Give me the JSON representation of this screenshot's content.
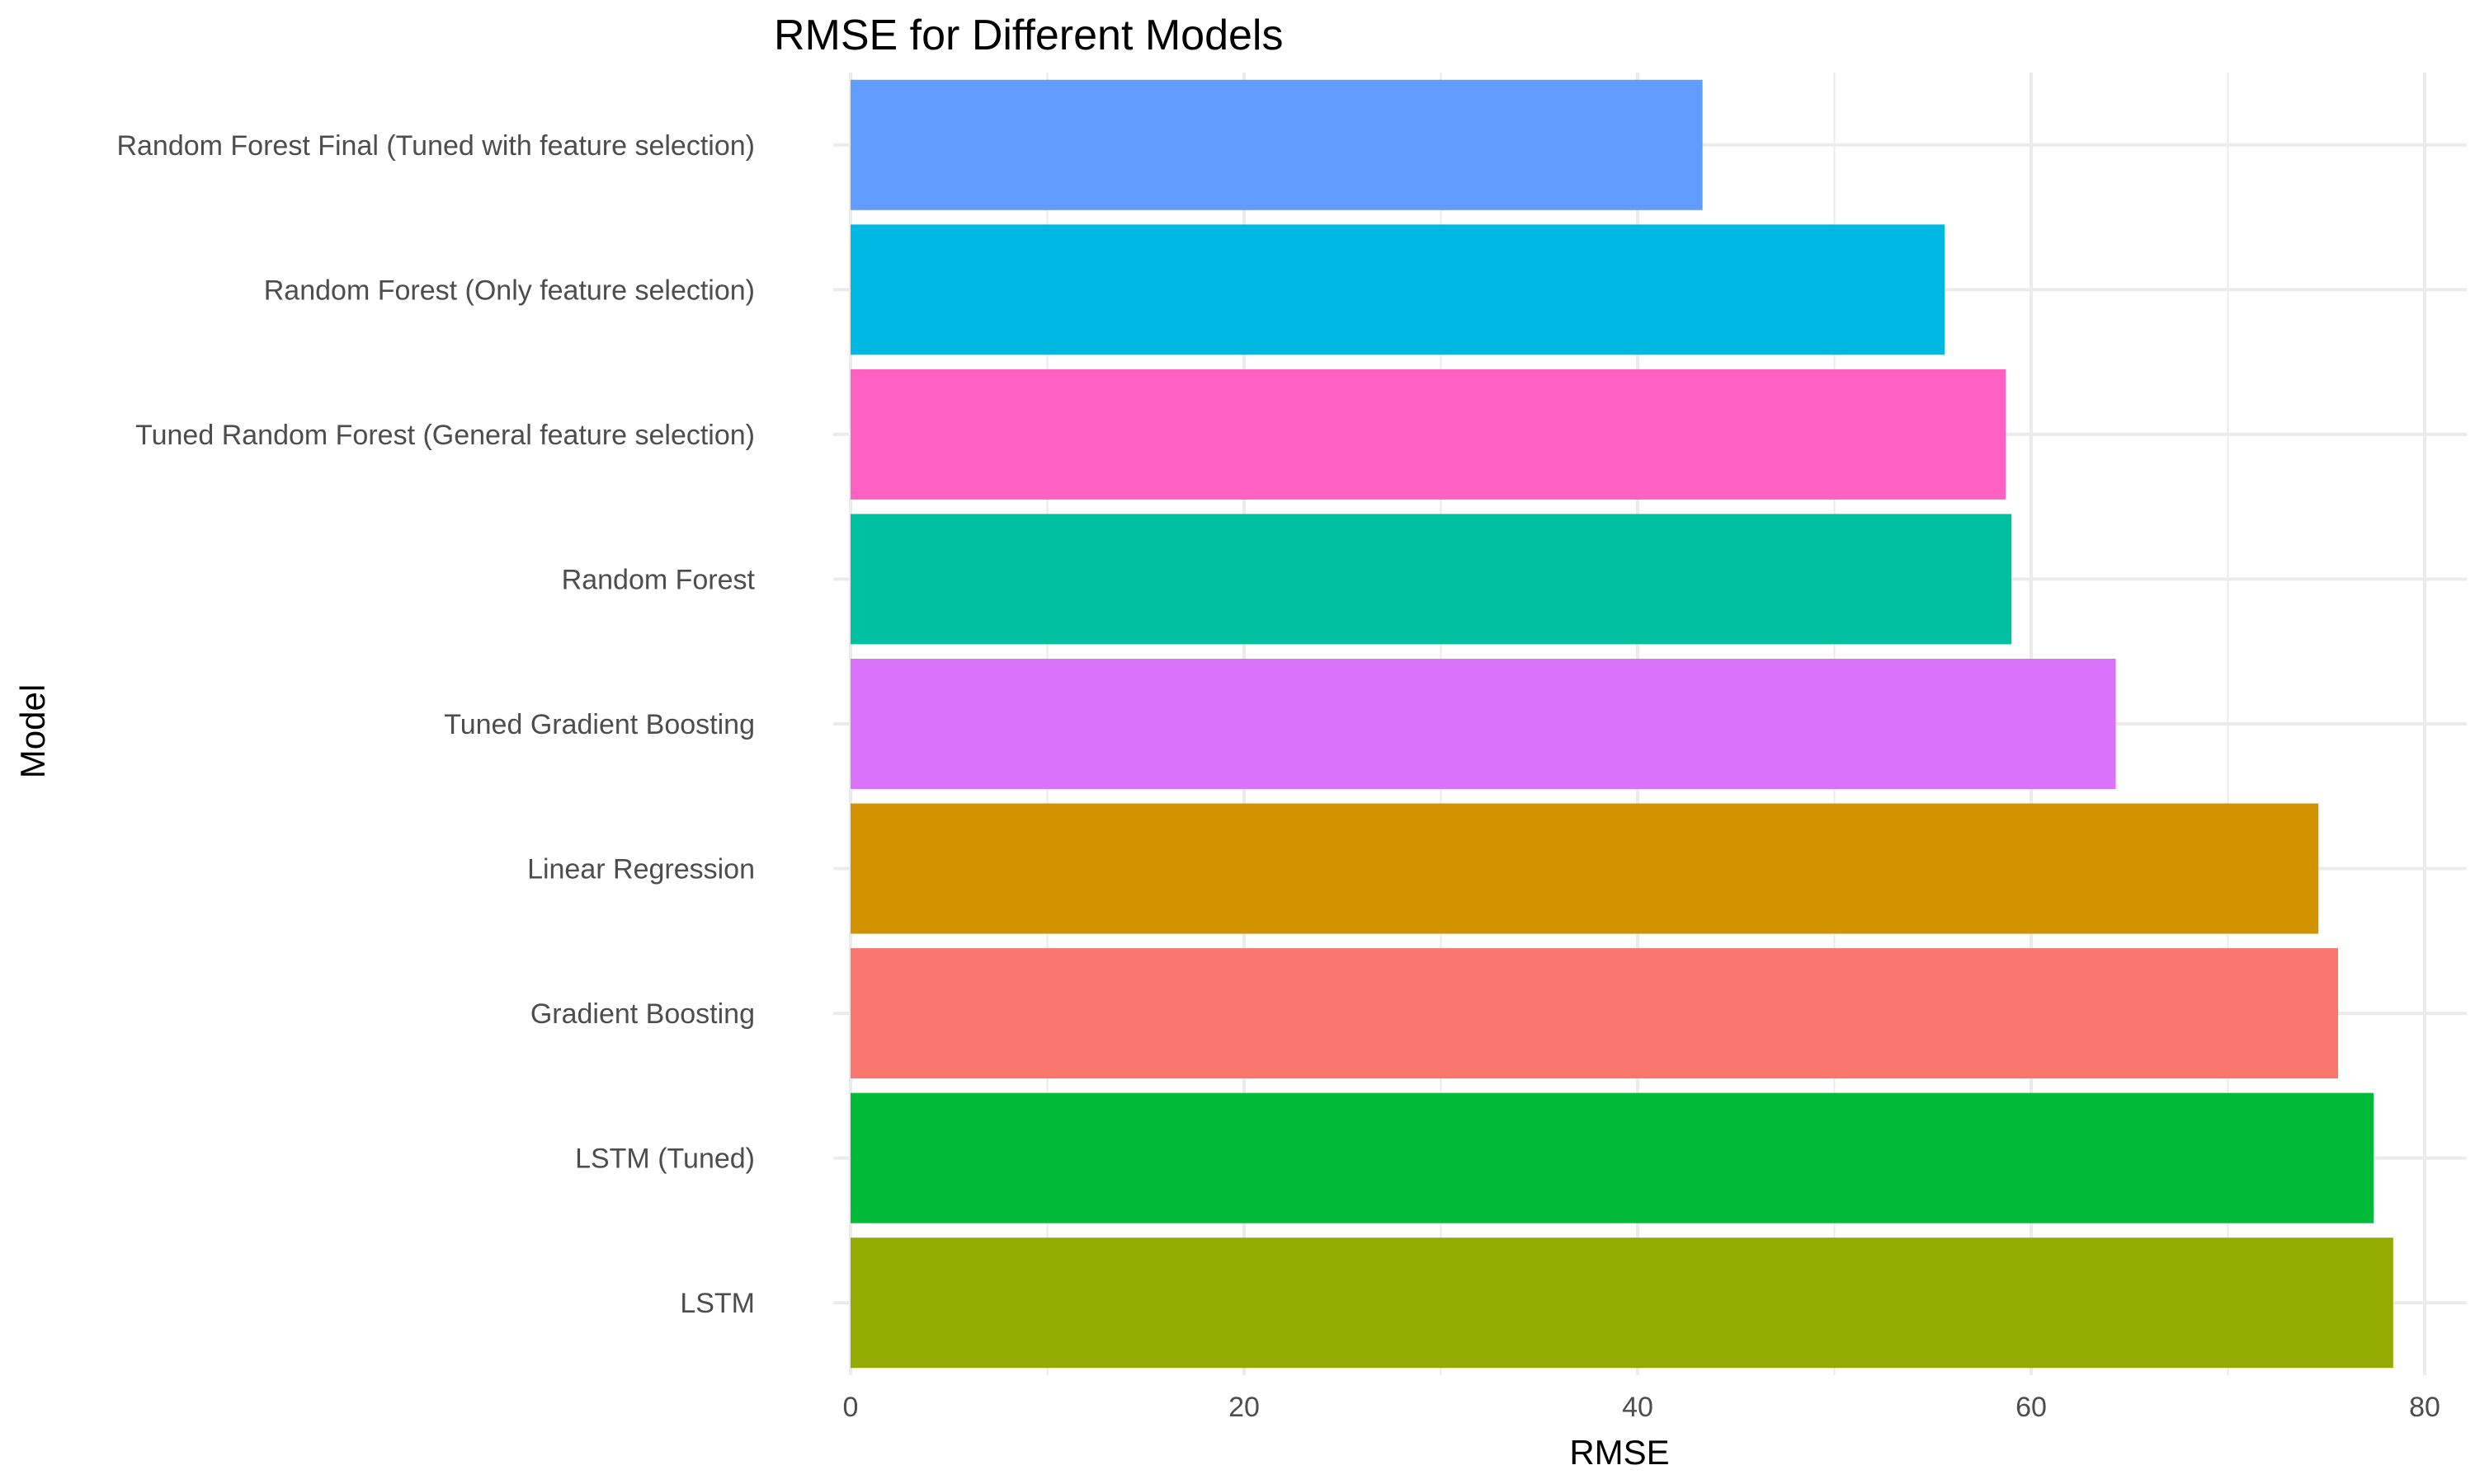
{
  "chart_data": {
    "type": "bar",
    "orientation": "horizontal",
    "title": "RMSE for Different Models",
    "xlabel": "RMSE",
    "ylabel": "Model",
    "xlim": [
      0,
      82
    ],
    "x_ticks": [
      0,
      20,
      40,
      60,
      80
    ],
    "grid": true,
    "legend": "none",
    "categories": [
      "Random Forest Final (Tuned with feature selection)",
      "Random Forest (Only feature selection)",
      "Tuned Random Forest (General feature selection)",
      "Random Forest",
      "Tuned Gradient Boosting",
      "Linear Regression",
      "Gradient Boosting",
      "LSTM (Tuned)",
      "LSTM"
    ],
    "values": [
      43.3,
      55.6,
      58.7,
      59.0,
      64.3,
      74.6,
      75.6,
      77.4,
      78.4
    ],
    "colors": [
      "#619CFF",
      "#00B9E3",
      "#FF61C3",
      "#00C19F",
      "#DB72FB",
      "#D39200",
      "#F8766D",
      "#00BA38",
      "#93AA00"
    ]
  }
}
